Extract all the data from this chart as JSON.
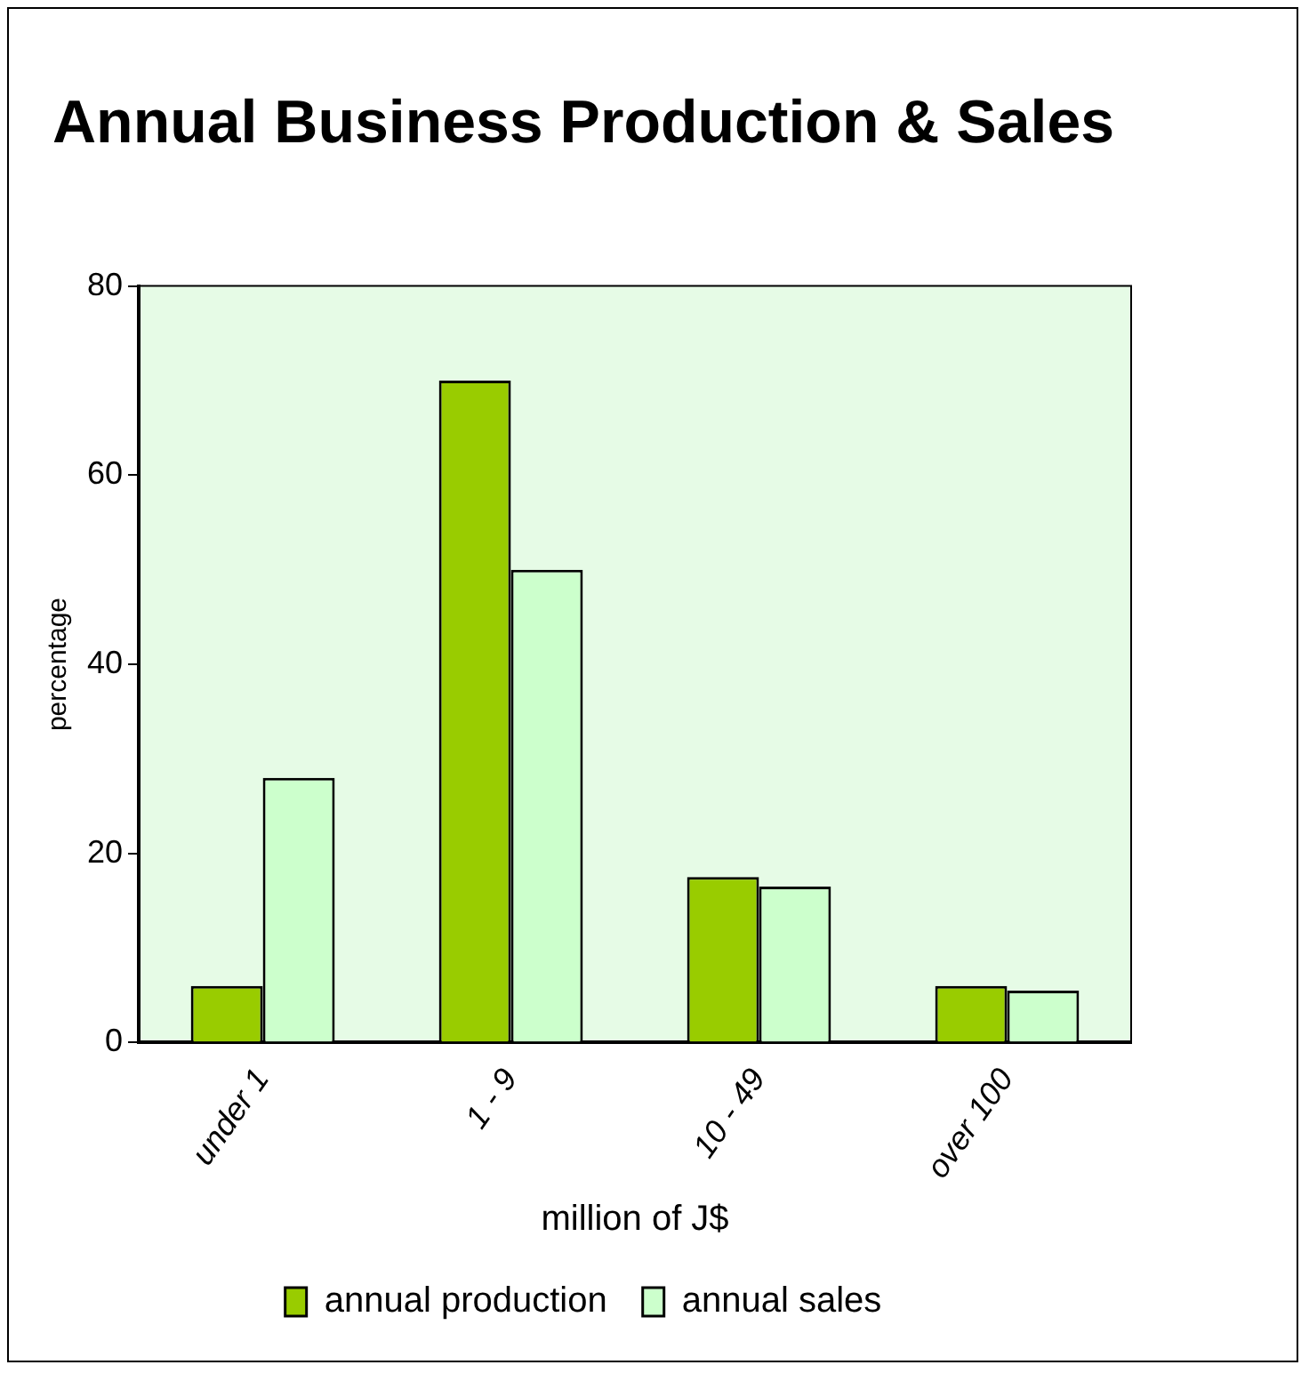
{
  "chart_data": {
    "type": "bar",
    "title": "Annual Business Production & Sales",
    "xlabel": "million of J$",
    "ylabel": "percentage",
    "categories": [
      "under 1",
      "1 - 9",
      "10 - 49",
      "over 100"
    ],
    "series": [
      {
        "name": "annual production",
        "color": "#99cc00",
        "values": [
          6,
          70,
          17.5,
          6
        ]
      },
      {
        "name": "annual sales",
        "color": "#ccffcc",
        "values": [
          28,
          50,
          16.5,
          5.5
        ]
      }
    ],
    "ylim": [
      0,
      80
    ],
    "yticks": [
      0,
      20,
      40,
      60,
      80
    ],
    "grid": false,
    "legend": "bottom"
  }
}
